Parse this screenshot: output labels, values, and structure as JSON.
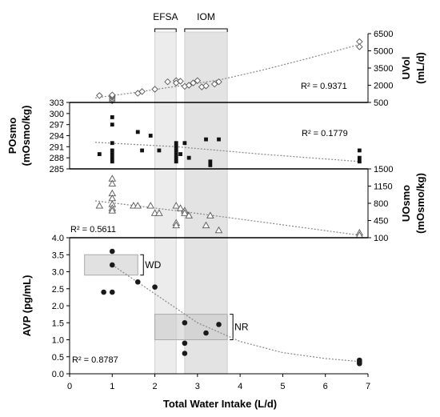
{
  "chart_data": {
    "type": "scatter",
    "xlabel": "Total Water Intake (L/d)",
    "x_axis": {
      "ticks": [
        0,
        1,
        2,
        3,
        4,
        5,
        6,
        7
      ],
      "range": [
        0,
        7
      ]
    },
    "bands": [
      {
        "label": "EFSA",
        "x_range": [
          2.0,
          2.5
        ]
      },
      {
        "label": "IOM",
        "x_range": [
          2.7,
          3.7
        ]
      }
    ],
    "panels": [
      {
        "id": "uvol",
        "ylabel": "UVol (mL/d)",
        "axis_side": "right",
        "y_range": [
          500,
          6500
        ],
        "ticks": [
          500,
          2000,
          3500,
          5000,
          6500
        ],
        "marker": "diamond-open",
        "r2": "R² = 0.9371",
        "points": [
          [
            0.7,
            1100
          ],
          [
            1.0,
            650
          ],
          [
            1.0,
            800
          ],
          [
            1.0,
            950
          ],
          [
            1.0,
            1050
          ],
          [
            1.0,
            1150
          ],
          [
            1.6,
            1300
          ],
          [
            1.7,
            1450
          ],
          [
            2.0,
            1650
          ],
          [
            2.3,
            2300
          ],
          [
            2.5,
            2400
          ],
          [
            2.5,
            2200
          ],
          [
            2.6,
            2350
          ],
          [
            2.7,
            1900
          ],
          [
            2.8,
            2000
          ],
          [
            2.9,
            2200
          ],
          [
            3.0,
            2400
          ],
          [
            3.1,
            1850
          ],
          [
            3.2,
            1950
          ],
          [
            3.4,
            2100
          ],
          [
            3.5,
            2300
          ],
          [
            6.8,
            5800
          ],
          [
            6.8,
            5350
          ]
        ],
        "trend": [
          [
            0.6,
            900
          ],
          [
            1.5,
            1350
          ],
          [
            2.5,
            1900
          ],
          [
            3.5,
            2450
          ],
          [
            4.5,
            3300
          ],
          [
            5.5,
            4250
          ],
          [
            6.8,
            5550
          ]
        ]
      },
      {
        "id": "posmo",
        "ylabel": "POsmo (mOsmo/kg)",
        "axis_side": "left",
        "y_range": [
          285,
          303
        ],
        "ticks": [
          285,
          288,
          291,
          294,
          297,
          300,
          303
        ],
        "marker": "square-filled",
        "r2": "R² = 0.1779",
        "points": [
          [
            0.7,
            289
          ],
          [
            1.0,
            299
          ],
          [
            1.0,
            297
          ],
          [
            1.0,
            292
          ],
          [
            1.0,
            290
          ],
          [
            1.0,
            289
          ],
          [
            1.0,
            288
          ],
          [
            1.0,
            287
          ],
          [
            1.6,
            295
          ],
          [
            1.7,
            290
          ],
          [
            1.9,
            294
          ],
          [
            2.1,
            290
          ],
          [
            2.5,
            292
          ],
          [
            2.5,
            291
          ],
          [
            2.5,
            290
          ],
          [
            2.5,
            289
          ],
          [
            2.5,
            288
          ],
          [
            2.5,
            287
          ],
          [
            2.6,
            289
          ],
          [
            2.7,
            292
          ],
          [
            2.8,
            288
          ],
          [
            3.2,
            293
          ],
          [
            3.3,
            287
          ],
          [
            3.3,
            286
          ],
          [
            3.5,
            293
          ],
          [
            6.8,
            290
          ],
          [
            6.8,
            288
          ],
          [
            6.8,
            287
          ]
        ],
        "trend": [
          [
            0.6,
            292.2
          ],
          [
            2.5,
            291.0
          ],
          [
            4.5,
            289.0
          ],
          [
            6.8,
            287.0
          ]
        ]
      },
      {
        "id": "uosmo",
        "ylabel": "UOsmo (mOsmo/kg)",
        "axis_side": "right",
        "y_range": [
          100,
          1500
        ],
        "ticks": [
          100,
          450,
          800,
          1150,
          1500
        ],
        "marker": "triangle-open",
        "r2": "R² = 0.5611",
        "points": [
          [
            0.7,
            750
          ],
          [
            1.0,
            1300
          ],
          [
            1.0,
            1200
          ],
          [
            1.0,
            1000
          ],
          [
            1.0,
            900
          ],
          [
            1.0,
            780
          ],
          [
            1.0,
            700
          ],
          [
            1.0,
            650
          ],
          [
            1.5,
            750
          ],
          [
            1.6,
            750
          ],
          [
            1.9,
            750
          ],
          [
            2.0,
            600
          ],
          [
            2.1,
            600
          ],
          [
            2.5,
            400
          ],
          [
            2.5,
            350
          ],
          [
            2.5,
            750
          ],
          [
            2.6,
            700
          ],
          [
            2.7,
            650
          ],
          [
            2.7,
            600
          ],
          [
            2.8,
            550
          ],
          [
            3.2,
            350
          ],
          [
            3.3,
            550
          ],
          [
            3.5,
            250
          ],
          [
            6.8,
            200
          ],
          [
            6.8,
            150
          ]
        ],
        "trend": [
          [
            0.6,
            850
          ],
          [
            2.5,
            650
          ],
          [
            4.5,
            420
          ],
          [
            6.8,
            150
          ]
        ]
      },
      {
        "id": "avp",
        "ylabel": "AVP (pg/mL)",
        "axis_side": "left",
        "y_range": [
          0,
          4
        ],
        "ticks": [
          "0.0",
          "0.5",
          "1.0",
          "1.5",
          "2.0",
          "2.5",
          "3.0",
          "3.5",
          "4.0"
        ],
        "marker": "circle-filled",
        "r2": "R² = 0.8787",
        "points": [
          [
            0.8,
            2.4
          ],
          [
            1.0,
            3.6
          ],
          [
            1.0,
            3.2
          ],
          [
            1.0,
            2.4
          ],
          [
            1.6,
            2.7
          ],
          [
            2.0,
            2.55
          ],
          [
            2.7,
            1.5
          ],
          [
            2.7,
            0.9
          ],
          [
            2.7,
            0.6
          ],
          [
            3.2,
            1.2
          ],
          [
            3.5,
            1.45
          ],
          [
            6.8,
            0.4
          ],
          [
            6.8,
            0.35
          ],
          [
            6.8,
            0.3
          ]
        ],
        "trend": [
          [
            1.0,
            3.2
          ],
          [
            2.0,
            2.35
          ],
          [
            3.0,
            1.5
          ],
          [
            4.0,
            0.95
          ],
          [
            5.0,
            0.62
          ],
          [
            6.0,
            0.45
          ],
          [
            6.8,
            0.36
          ]
        ],
        "groups": [
          {
            "label": "WD",
            "x_range": [
              0.35,
              1.6
            ],
            "y_range": [
              2.9,
              3.5
            ]
          },
          {
            "label": "NR",
            "x_range": [
              2.0,
              3.7
            ],
            "y_range": [
              1.0,
              1.75
            ]
          }
        ]
      }
    ]
  }
}
